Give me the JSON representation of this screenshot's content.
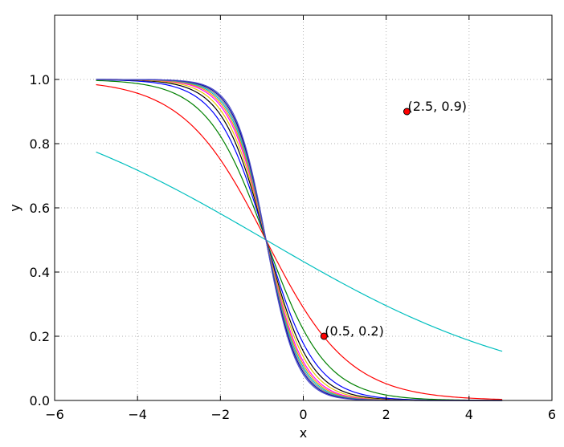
{
  "chart_data": {
    "type": "line",
    "xlabel": "x",
    "ylabel": "y",
    "xlim": [
      -6,
      6
    ],
    "ylim": [
      0,
      1.2
    ],
    "grid": true,
    "xticks": [
      -6,
      -4,
      -2,
      0,
      2,
      4,
      6
    ],
    "xtick_labels": [
      "−6",
      "−4",
      "−2",
      "0",
      "2",
      "4",
      "6"
    ],
    "yticks": [
      0,
      0.2,
      0.4,
      0.6,
      0.8,
      1.0
    ],
    "ytick_labels": [
      "0.0",
      "0.2",
      "0.4",
      "0.6",
      "0.8",
      "1.0"
    ],
    "x_range": [
      -5,
      4.8
    ],
    "curve_form": "y = 1 / (1 + exp(k * (x + 0.9)))",
    "series": [
      {
        "k": 0.3,
        "color": "#00bfbf"
      },
      {
        "k": 1.0,
        "color": "#ff0000"
      },
      {
        "k": 1.4,
        "color": "#008000"
      },
      {
        "k": 1.7,
        "color": "#0000ff"
      },
      {
        "k": 1.9,
        "color": "#000000"
      },
      {
        "k": 2.05,
        "color": "#e6c800"
      },
      {
        "k": 2.2,
        "color": "#ff00ff"
      },
      {
        "k": 2.3,
        "color": "#ff8c00"
      },
      {
        "k": 2.4,
        "color": "#00bfbf"
      },
      {
        "k": 2.5,
        "color": "#808080"
      },
      {
        "k": 2.6,
        "color": "#0000aa"
      },
      {
        "k": 2.7,
        "color": "#5050c8"
      }
    ],
    "points": [
      {
        "x": 0.5,
        "y": 0.2,
        "label": "(0.5, 0.2)",
        "color": "#ff0000"
      },
      {
        "x": 2.5,
        "y": 0.9,
        "label": "(2.5, 0.9)",
        "color": "#ff0000"
      }
    ]
  }
}
